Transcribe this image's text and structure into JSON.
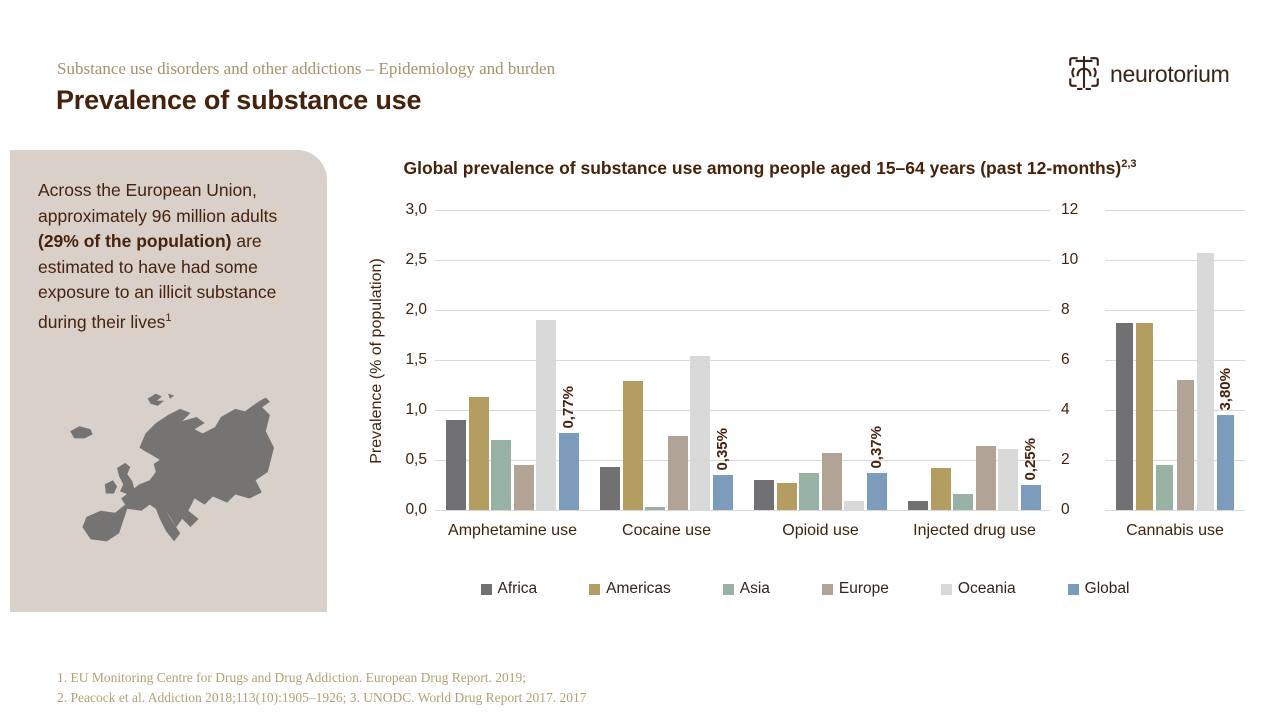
{
  "header": {
    "eyebrow": "Substance use disorders and other addictions – Epidemiology and burden",
    "title": "Prevalence of substance use",
    "logo_text": "neurotorium"
  },
  "sidebar": {
    "text_before": "Across the European Union, approximately 96 million adults ",
    "text_bold": "(29% of the population)",
    "text_after": " are estimated to have had some exposure to an illicit substance during their lives",
    "footnote_marker": "1"
  },
  "chart_data": {
    "type": "bar",
    "title": "Global prevalence of substance use among people aged 15–64 years (past 12-months)",
    "title_superscript": "2,3",
    "ylabel": "Prevalence (% of population)",
    "left_axis": {
      "min": 0,
      "max": 3,
      "ticks": [
        "3,0",
        "2,5",
        "2,0",
        "1,5",
        "1,0",
        "0,5",
        "0,0"
      ]
    },
    "right_axis": {
      "min": 0,
      "max": 12,
      "ticks": [
        "12",
        "10",
        "8",
        "6",
        "4",
        "2",
        "0"
      ]
    },
    "gridlines": true,
    "legend_position": "bottom",
    "series": [
      {
        "name": "Africa",
        "color": "#717073"
      },
      {
        "name": "Americas",
        "color": "#b39d60"
      },
      {
        "name": "Asia",
        "color": "#97b1a4"
      },
      {
        "name": "Europe",
        "color": "#b2a397"
      },
      {
        "name": "Oceania",
        "color": "#d9d9d9"
      },
      {
        "name": "Global",
        "color": "#7d9cbb"
      }
    ],
    "groups": [
      {
        "label": "Amphetamine use",
        "axis": "left",
        "values": [
          0.9,
          1.13,
          0.7,
          0.45,
          1.9,
          0.77
        ],
        "global_label": "0,77%"
      },
      {
        "label": "Cocaine use",
        "axis": "left",
        "values": [
          0.43,
          1.29,
          0.03,
          0.74,
          1.54,
          0.35
        ],
        "global_label": "0,35%"
      },
      {
        "label": "Opioid use",
        "axis": "left",
        "values": [
          0.3,
          0.27,
          0.37,
          0.57,
          0.09,
          0.37
        ],
        "global_label": "0,37%"
      },
      {
        "label": "Injected drug use",
        "axis": "left",
        "values": [
          0.09,
          0.42,
          0.16,
          0.64,
          0.61,
          0.25
        ],
        "global_label": "0,25%"
      },
      {
        "label": "Cannabis use",
        "axis": "right",
        "values": [
          7.5,
          7.5,
          1.8,
          5.2,
          10.3,
          3.8
        ],
        "global_label": "3,80%"
      }
    ]
  },
  "footer": {
    "line1": "1. EU Monitoring Centre for Drugs and Drug Addiction. European Drug Report. 2019;",
    "line2": "2. Peacock et al. Addiction 2018;113(10):1905–1926; 3. UNODC. World Drug Report 2017. 2017"
  },
  "colors": {
    "title_text": "#46210b",
    "eyebrow_text": "#a6926a",
    "panel_background": "#d8d0c9",
    "map_fill": "#767472",
    "footer_text": "#b1a175",
    "gridline": "#d9d9d9"
  }
}
